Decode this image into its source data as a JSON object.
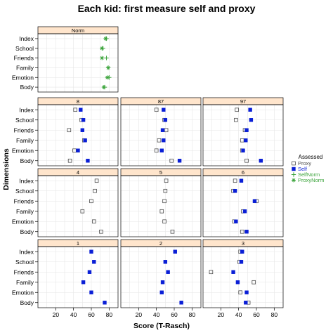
{
  "chart_data": {
    "type": "scatter",
    "title": "Each kid: first measure self and proxy",
    "xlabel": "Score (T-Rasch)",
    "ylabel": "Dimensions",
    "xlim": [
      0,
      90
    ],
    "x_ticks": [
      20,
      40,
      60,
      80
    ],
    "dimensions": [
      "Index",
      "School",
      "Friends",
      "Family",
      "Emotion",
      "Body"
    ],
    "grid": true,
    "legend": {
      "title": "Assessed",
      "position": "right",
      "entries": [
        {
          "name": "Proxy",
          "symbol": "open-square",
          "color": "#4d4d4d"
        },
        {
          "name": "Self",
          "symbol": "filled-square",
          "color": "#0a1fd6"
        },
        {
          "name": "SelfNorm",
          "symbol": "plus",
          "color": "#3aa33a"
        },
        {
          "name": "ProxyNorm",
          "symbol": "asterisk",
          "color": "#3aa33a"
        }
      ]
    },
    "panels": [
      {
        "label": "Norm",
        "self_norm": {
          "Index": 77,
          "School": 73,
          "Friends": 77,
          "Family": 79,
          "Emotion": 80,
          "Body": 75
        },
        "proxy_norm": {
          "Index": 76,
          "School": 72,
          "Friends": 72,
          "Family": 79,
          "Emotion": 78,
          "Body": 74
        }
      },
      {
        "label": "8",
        "proxy": {
          "Index": 42,
          "School": 49,
          "Friends": 35,
          "Family": 52,
          "Emotion": 41,
          "Body": 36
        },
        "self": {
          "Index": 48,
          "School": 51,
          "Friends": 50,
          "Family": 53,
          "Emotion": 45,
          "Body": 56
        }
      },
      {
        "label": "87",
        "proxy": {
          "Index": 40,
          "School": 49,
          "Friends": 51,
          "Family": 43,
          "Emotion": 40,
          "Body": 57
        },
        "self": {
          "Index": 48,
          "School": 50,
          "Friends": 47,
          "Family": 48,
          "Emotion": 46,
          "Body": 66
        }
      },
      {
        "label": "97",
        "proxy": {
          "Index": 38,
          "School": 37,
          "Friends": 47,
          "Family": 44,
          "Emotion": 44,
          "Body": 49
        },
        "self": {
          "Index": 53,
          "School": 54,
          "Friends": 49,
          "Family": 48,
          "Emotion": 45,
          "Body": 65
        }
      },
      {
        "label": "4",
        "proxy": {
          "Index": 66,
          "School": 64,
          "Friends": 60,
          "Family": 50,
          "Emotion": 63,
          "Body": 71
        },
        "self": {}
      },
      {
        "label": "5",
        "proxy": {
          "Index": 51,
          "School": 50,
          "Friends": 49,
          "Family": 46,
          "Emotion": 49,
          "Body": 58
        },
        "self": {}
      },
      {
        "label": "6",
        "proxy": {
          "Index": 36,
          "School": 34,
          "Friends": 60,
          "Family": 45,
          "Emotion": 35,
          "Body": 44
        },
        "self": {
          "Index": 43,
          "School": 36,
          "Friends": 58,
          "Family": 47,
          "Emotion": 37,
          "Body": 49
        }
      },
      {
        "label": "1",
        "proxy": {},
        "self": {
          "Index": 60,
          "School": 63,
          "Friends": 58,
          "Family": 51,
          "Emotion": 60,
          "Body": 75
        }
      },
      {
        "label": "2",
        "proxy": {},
        "self": {
          "Index": 61,
          "School": 50,
          "Friends": 53,
          "Family": 47,
          "Emotion": 46,
          "Body": 68
        }
      },
      {
        "label": "3",
        "proxy": {
          "Index": 42,
          "School": 41,
          "Friends": 9,
          "Family": 57,
          "Emotion": 42,
          "Body": 51
        },
        "self": {
          "Index": 44,
          "School": 43,
          "Friends": 34,
          "Family": 39,
          "Emotion": 49,
          "Body": 48
        }
      }
    ]
  }
}
